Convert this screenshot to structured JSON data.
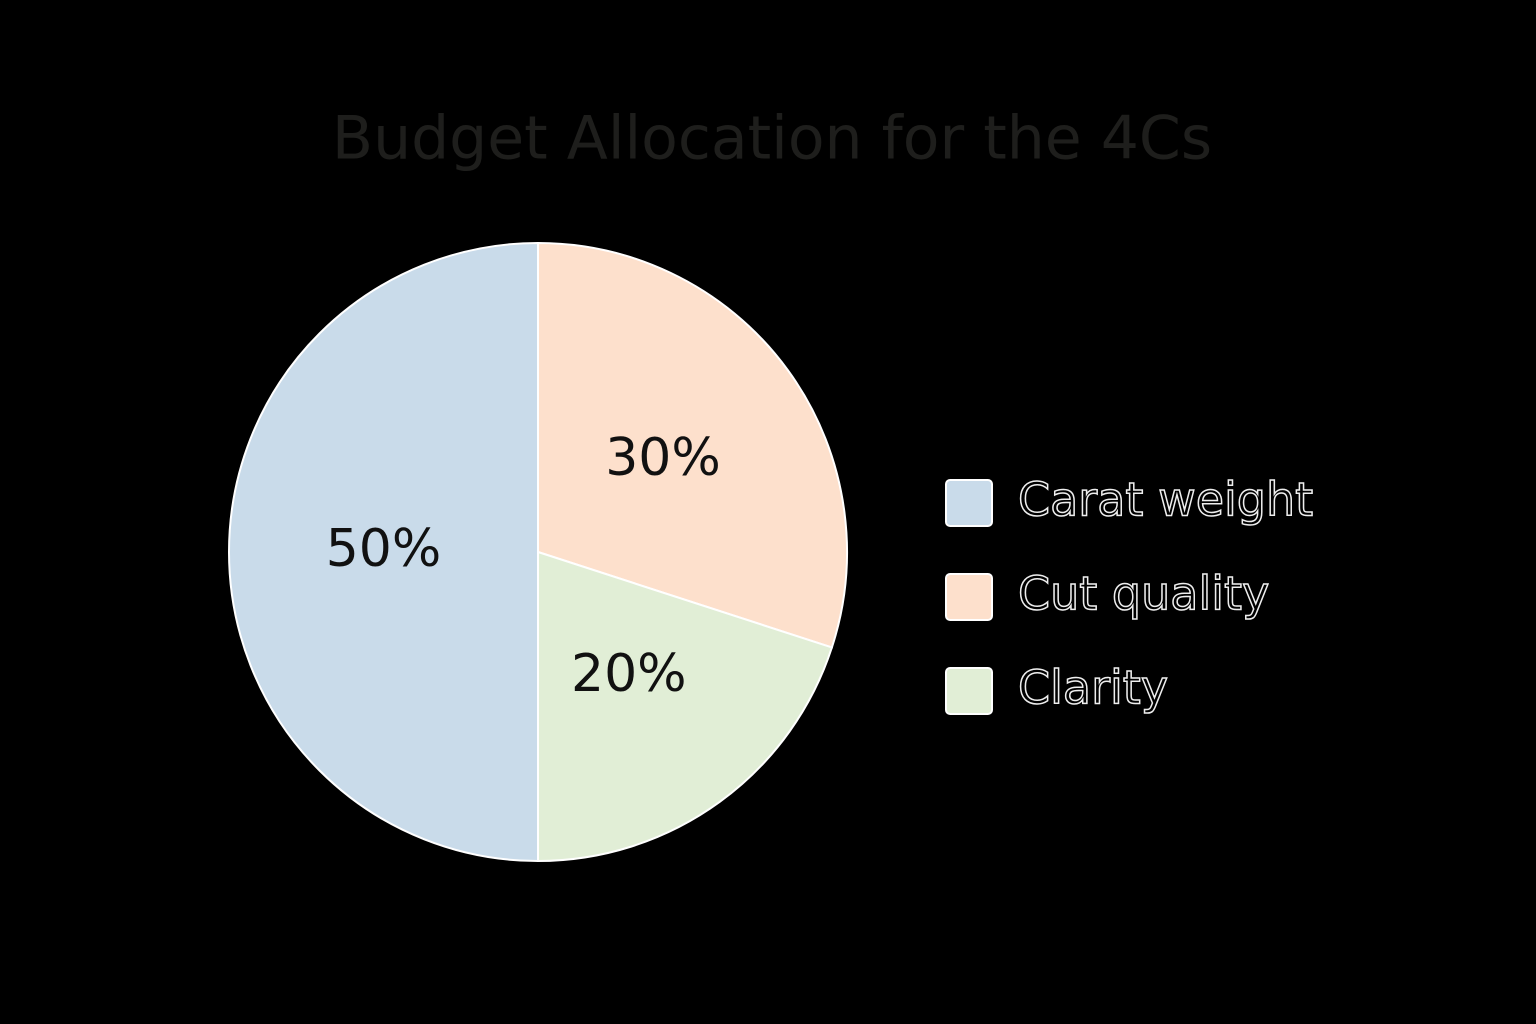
{
  "chart_data": {
    "type": "pie",
    "title": "Budget Allocation for the 4Cs",
    "categories": [
      "Carat weight",
      "Cut quality",
      "Clarity"
    ],
    "values": [
      50,
      30,
      20
    ],
    "value_labels": [
      "50%",
      "30%",
      "20%"
    ],
    "colors": [
      "#c9dbea",
      "#fde0cc",
      "#e1eed6"
    ],
    "legend": "right"
  }
}
